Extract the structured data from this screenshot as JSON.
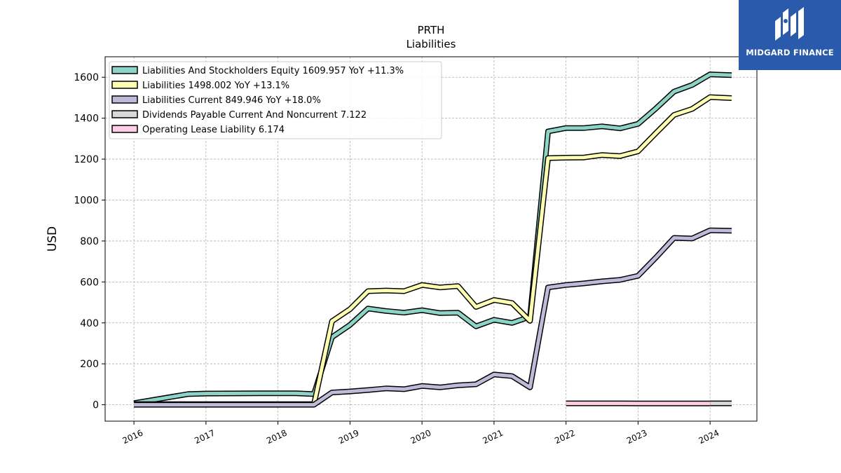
{
  "chart_data": {
    "type": "line",
    "title": "PRTH",
    "subtitle": "Liabilities",
    "ylabel": "USD",
    "xlabel": "",
    "xlim": [
      2015.6,
      2024.65
    ],
    "ylim": [
      -80,
      1700
    ],
    "x_ticks": [
      "2016",
      "2017",
      "2018",
      "2019",
      "2020",
      "2021",
      "2022",
      "2023",
      "2024"
    ],
    "y_ticks": [
      0,
      200,
      400,
      600,
      800,
      1000,
      1200,
      1400,
      1600
    ],
    "grid": true,
    "legend_position": "upper-left",
    "series": [
      {
        "name": "Liabilities And Stockholders Equity",
        "legend_label": "Liabilities And Stockholders Equity  1609.957 YoY +11.3%",
        "color": "#8dd3c7",
        "points": [
          [
            2016.0,
            8
          ],
          [
            2016.75,
            52
          ],
          [
            2017.0,
            55
          ],
          [
            2017.75,
            56
          ],
          [
            2018.0,
            56
          ],
          [
            2018.25,
            56
          ],
          [
            2018.5,
            52
          ],
          [
            2018.75,
            330
          ],
          [
            2019.0,
            390
          ],
          [
            2019.25,
            470
          ],
          [
            2019.5,
            458
          ],
          [
            2019.75,
            450
          ],
          [
            2020.0,
            462
          ],
          [
            2020.25,
            448
          ],
          [
            2020.5,
            450
          ],
          [
            2020.75,
            383
          ],
          [
            2021.0,
            415
          ],
          [
            2021.25,
            400
          ],
          [
            2021.5,
            430
          ],
          [
            2021.75,
            1335
          ],
          [
            2022.0,
            1352
          ],
          [
            2022.25,
            1352
          ],
          [
            2022.5,
            1360
          ],
          [
            2022.75,
            1350
          ],
          [
            2023.0,
            1372
          ],
          [
            2023.25,
            1448
          ],
          [
            2023.5,
            1530
          ],
          [
            2023.75,
            1562
          ],
          [
            2024.0,
            1614
          ],
          [
            2024.3,
            1610
          ]
        ]
      },
      {
        "name": "Liabilities",
        "legend_label": "Liabilities  1498.002 YoY +13.1%",
        "color": "#ffffb3",
        "points": [
          [
            2016.0,
            3
          ],
          [
            2016.75,
            3
          ],
          [
            2017.0,
            3
          ],
          [
            2017.75,
            3
          ],
          [
            2018.0,
            3
          ],
          [
            2018.25,
            3
          ],
          [
            2018.5,
            3
          ],
          [
            2018.75,
            408
          ],
          [
            2019.0,
            467
          ],
          [
            2019.25,
            555
          ],
          [
            2019.5,
            558
          ],
          [
            2019.75,
            555
          ],
          [
            2020.0,
            585
          ],
          [
            2020.25,
            573
          ],
          [
            2020.5,
            580
          ],
          [
            2020.75,
            478
          ],
          [
            2021.0,
            512
          ],
          [
            2021.25,
            497
          ],
          [
            2021.5,
            410
          ],
          [
            2021.75,
            1205
          ],
          [
            2022.0,
            1207
          ],
          [
            2022.25,
            1208
          ],
          [
            2022.5,
            1220
          ],
          [
            2022.75,
            1215
          ],
          [
            2023.0,
            1238
          ],
          [
            2023.25,
            1328
          ],
          [
            2023.5,
            1416
          ],
          [
            2023.75,
            1445
          ],
          [
            2024.0,
            1503
          ],
          [
            2024.3,
            1498
          ]
        ]
      },
      {
        "name": "Liabilities Current",
        "legend_label": "Liabilities Current  849.946 YoY +18.0%",
        "color": "#bebada",
        "points": [
          [
            2016.0,
            0
          ],
          [
            2016.75,
            0
          ],
          [
            2017.0,
            0
          ],
          [
            2017.75,
            0
          ],
          [
            2018.0,
            0
          ],
          [
            2018.25,
            0
          ],
          [
            2018.5,
            0
          ],
          [
            2018.75,
            60
          ],
          [
            2019.0,
            65
          ],
          [
            2019.25,
            72
          ],
          [
            2019.5,
            80
          ],
          [
            2019.75,
            76
          ],
          [
            2020.0,
            92
          ],
          [
            2020.25,
            85
          ],
          [
            2020.5,
            95
          ],
          [
            2020.75,
            100
          ],
          [
            2021.0,
            148
          ],
          [
            2021.25,
            140
          ],
          [
            2021.5,
            85
          ],
          [
            2021.75,
            573
          ],
          [
            2022.0,
            585
          ],
          [
            2022.25,
            593
          ],
          [
            2022.5,
            603
          ],
          [
            2022.75,
            610
          ],
          [
            2023.0,
            630
          ],
          [
            2023.25,
            720
          ],
          [
            2023.5,
            815
          ],
          [
            2023.75,
            812
          ],
          [
            2024.0,
            852
          ],
          [
            2024.3,
            850
          ]
        ]
      },
      {
        "name": "Dividends Payable Current And Noncurrent",
        "legend_label": "Dividends Payable Current And Noncurrent  7.122",
        "color": "#d9d9d9",
        "points": [
          [
            2024.0,
            7
          ],
          [
            2024.3,
            7
          ]
        ]
      },
      {
        "name": "Operating Lease Liability",
        "legend_label": "Operating Lease Liability  6.174",
        "color": "#fccde5",
        "points": [
          [
            2022.0,
            7
          ],
          [
            2022.5,
            6.8
          ],
          [
            2023.0,
            6.5
          ],
          [
            2023.5,
            6.3
          ],
          [
            2024.0,
            6.2
          ]
        ]
      }
    ]
  },
  "logo": {
    "text": "MIDGARD FINANCE"
  }
}
